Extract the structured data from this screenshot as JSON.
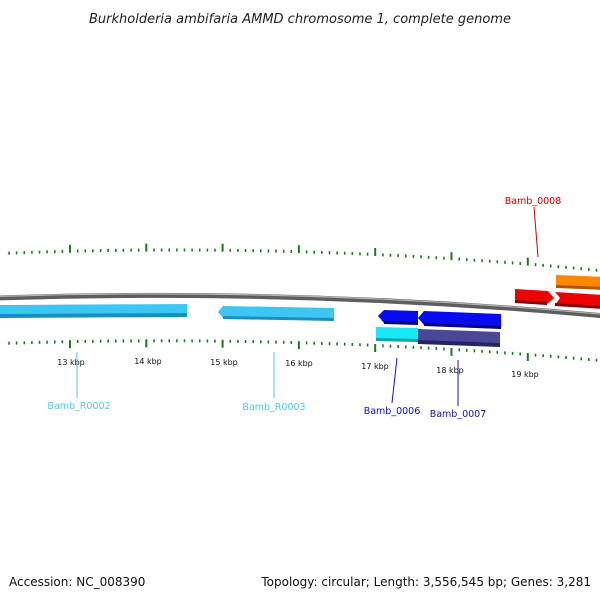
{
  "title": "Burkholderia ambifaria AMMD chromosome 1, complete genome",
  "footer": {
    "accession": "Accession: NC_008390",
    "summary": "Topology: circular; Length: 3,556,545 bp; Genes: 3,281"
  },
  "scale_labels": [
    "13 kbp",
    "14 kbp",
    "15 kbp",
    "16 kbp",
    "17 kbp",
    "18 kbp",
    "19 kbp"
  ],
  "genes": [
    {
      "label": "Bamb_R0002",
      "color": "#4fc9ea"
    },
    {
      "label": "Bamb_R0003",
      "color": "#4fc9ea"
    },
    {
      "label": "Bamb_0006",
      "color": "#1010c8"
    },
    {
      "label": "Bamb_0007",
      "color": "#1414a0"
    },
    {
      "label": "Bamb_0008",
      "color": "#cc0000"
    }
  ],
  "colors": {
    "backbone": "#7a7a7a",
    "ticks": "#1d7a1d",
    "rna_feature": "#3ec6f2",
    "cds_blue": "#0a0af0",
    "cds_cyan": "#19e9f2",
    "cds_slate": "#3d3a8a",
    "cds_red": "#ee0000",
    "cds_orange": "#ff8800"
  }
}
